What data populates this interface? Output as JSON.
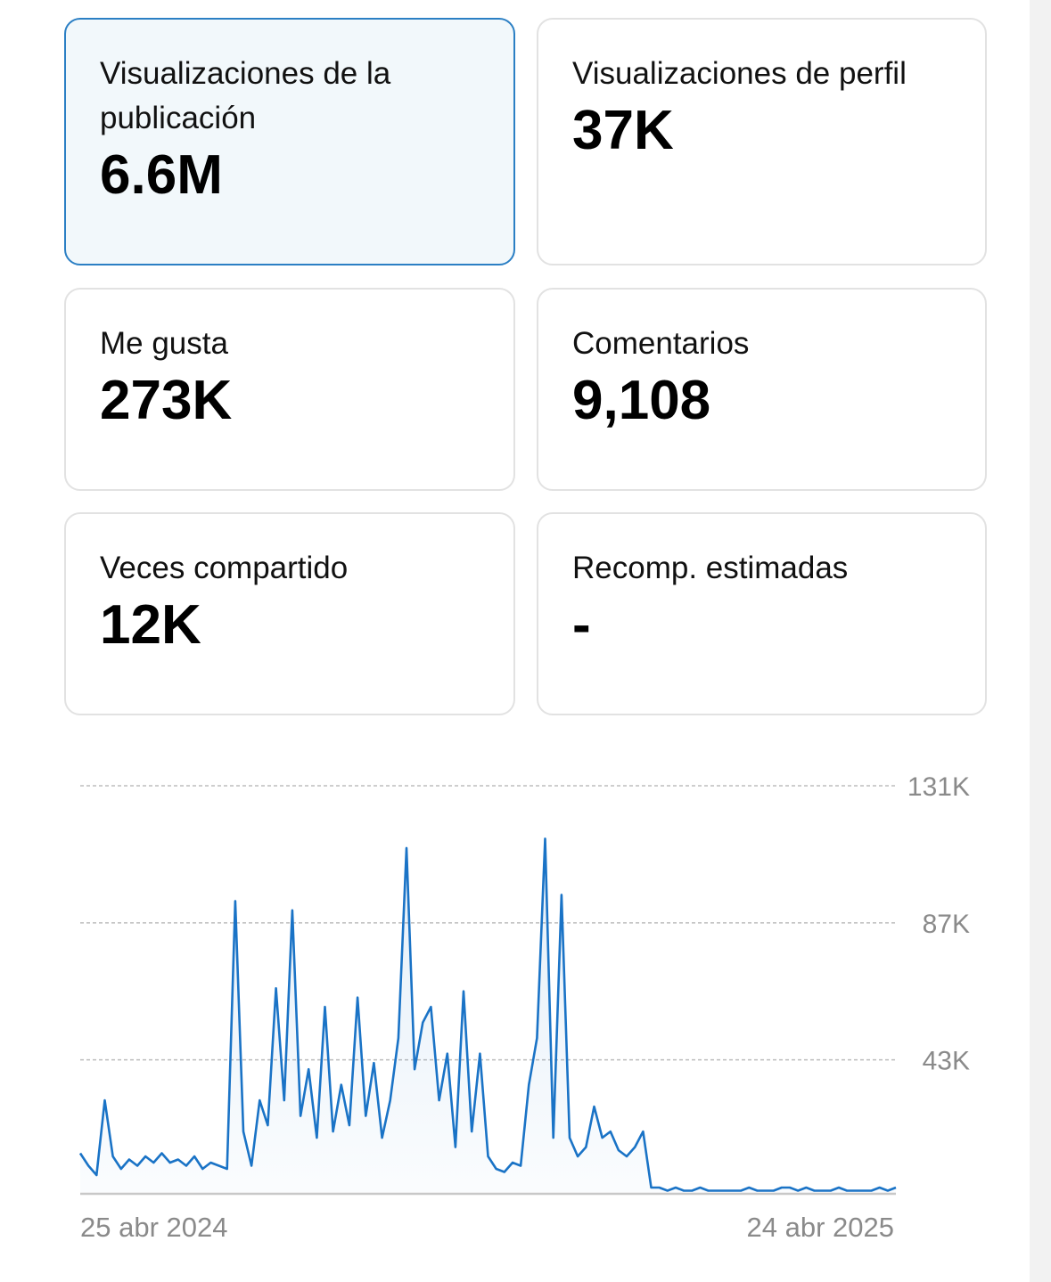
{
  "cards": [
    {
      "label": "Visualizaciones de la publicación",
      "value": "6.6M"
    },
    {
      "label": "Visualizaciones de perfil",
      "value": "37K"
    },
    {
      "label": "Me gusta",
      "value": "273K"
    },
    {
      "label": "Comentarios",
      "value": "9,108"
    },
    {
      "label": "Veces compartido",
      "value": "12K"
    },
    {
      "label": "Recomp. estimadas",
      "value": "-"
    }
  ],
  "chart_data": {
    "type": "line",
    "categories": [
      "25 abr 2024",
      null,
      null,
      null,
      null,
      null,
      null,
      null,
      null,
      null,
      null,
      null,
      null,
      null,
      null,
      null,
      null,
      null,
      null,
      null,
      null,
      null,
      null,
      null,
      null,
      null,
      null,
      null,
      null,
      null,
      null,
      null,
      null,
      null,
      null,
      null,
      null,
      null,
      null,
      null,
      null,
      null,
      null,
      null,
      null,
      null,
      null,
      null,
      null,
      null,
      null,
      null,
      null,
      null,
      null,
      null,
      null,
      null,
      null,
      null,
      null,
      null,
      null,
      null,
      null,
      null,
      null,
      null,
      null,
      null,
      null,
      null,
      null,
      null,
      null,
      null,
      null,
      null,
      null,
      null,
      null,
      null,
      null,
      null,
      null,
      null,
      null,
      null,
      null,
      null,
      null,
      null,
      null,
      null,
      null,
      null,
      null,
      null,
      null,
      null,
      "24 abr 2025"
    ],
    "series": [
      {
        "color": "#1a73c6",
        "values": [
          13000,
          9000,
          6000,
          30000,
          12000,
          8000,
          11000,
          9000,
          12000,
          10000,
          13000,
          10000,
          11000,
          9000,
          12000,
          8000,
          10000,
          9000,
          8000,
          94000,
          20000,
          9000,
          30000,
          22000,
          66000,
          30000,
          91000,
          25000,
          40000,
          18000,
          60000,
          20000,
          35000,
          22000,
          63000,
          25000,
          42000,
          18000,
          30000,
          50000,
          111000,
          40000,
          55000,
          60000,
          30000,
          45000,
          15000,
          65000,
          20000,
          45000,
          12000,
          8000,
          7000,
          10000,
          9000,
          35000,
          50000,
          114000,
          18000,
          96000,
          18000,
          12000,
          15000,
          28000,
          18000,
          20000,
          14000,
          12000,
          15000,
          20000,
          2000,
          2000,
          1000,
          2000,
          1000,
          1000,
          2000,
          1000,
          1000,
          1000,
          1000,
          1000,
          2000,
          1000,
          1000,
          1000,
          2000,
          2000,
          1000,
          2000,
          1000,
          1000,
          1000,
          2000,
          1000,
          1000,
          1000,
          1000,
          2000,
          1000,
          2000
        ]
      }
    ],
    "ylim": [
      0,
      131000
    ],
    "yticks": [
      {
        "value": 43000,
        "label": "43K"
      },
      {
        "value": 87000,
        "label": "87K"
      },
      {
        "value": 131000,
        "label": "131K"
      }
    ],
    "grid": true
  }
}
